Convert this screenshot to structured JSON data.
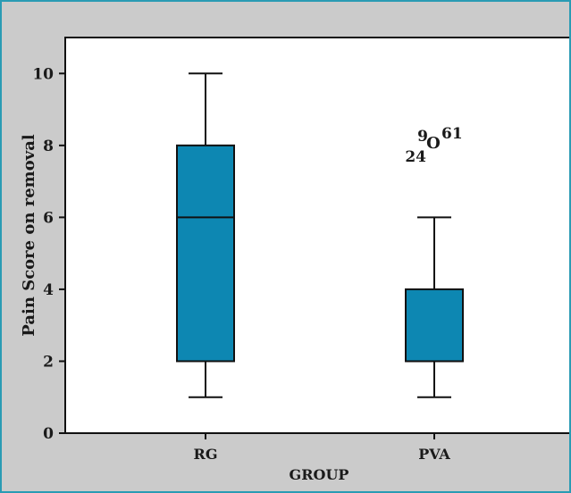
{
  "chart_data": {
    "type": "boxplot",
    "xlabel": "GROUP",
    "ylabel": "Pain Score on removal",
    "ylim": [
      0,
      11
    ],
    "yticks": [
      0,
      2,
      4,
      6,
      8,
      10
    ],
    "grid": false,
    "categories": [
      "RG",
      "PVA"
    ],
    "boxes": [
      {
        "category": "RG",
        "whisker_low": 1,
        "q1": 2,
        "median": 6,
        "q3": 8,
        "whisker_high": 10
      },
      {
        "category": "PVA",
        "whisker_low": 1,
        "q1": 2,
        "median": 2,
        "q3": 4,
        "whisker_high": 6
      }
    ],
    "outliers": [
      {
        "category": "PVA",
        "value": 8,
        "labels": [
          "9",
          "61",
          "24"
        ],
        "marker": "O"
      }
    ],
    "colors": {
      "box_fill": "#0d87b2",
      "frame_border": "#2a9bb4",
      "panel_bg": "#cbcbcb",
      "plot_bg": "#ffffff"
    }
  }
}
